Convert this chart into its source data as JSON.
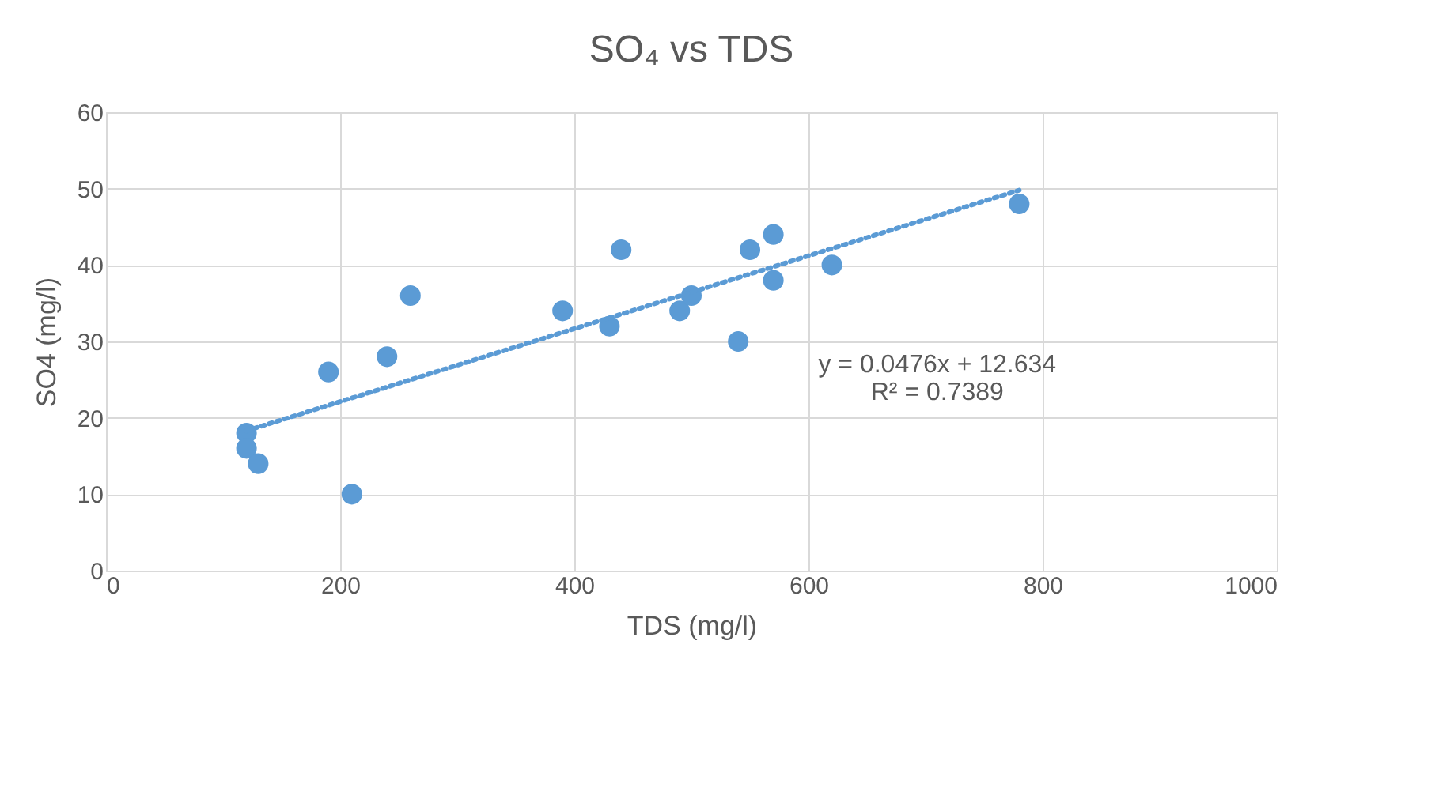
{
  "chart_data": {
    "type": "scatter",
    "title": "SO₄ vs TDS",
    "xlabel": "TDS (mg/l)",
    "ylabel": "SO4 (mg/l)",
    "xlim": [
      0,
      1000
    ],
    "xticks": [
      0,
      200,
      400,
      600,
      800,
      1000
    ],
    "ylim": [
      0,
      60
    ],
    "yticks": [
      0,
      10,
      20,
      30,
      40,
      50,
      60
    ],
    "grid": true,
    "marker": "circle",
    "series": [
      {
        "color": "#5b9bd5",
        "x": [
          120,
          120,
          130,
          190,
          210,
          240,
          260,
          390,
          430,
          440,
          490,
          500,
          540,
          550,
          570,
          570,
          620,
          780
        ],
        "values": [
          18,
          16,
          14,
          26,
          10,
          28,
          36,
          34,
          32,
          42,
          34,
          36,
          30,
          42,
          44,
          38,
          40,
          48
        ]
      },
      {
        "type": "line",
        "color": "#5b9bd5",
        "line_style": "dotted",
        "marker": "none",
        "x": [
          120,
          780
        ],
        "values": [
          18.3,
          49.8
        ]
      }
    ],
    "annotations": [
      "y = 0.0476x + 12.634",
      "R² = 0.7389"
    ]
  }
}
